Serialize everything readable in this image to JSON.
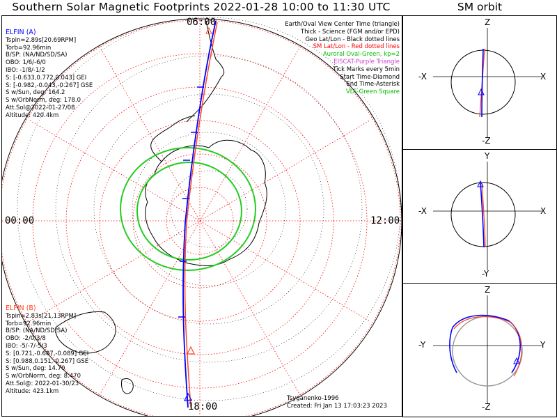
{
  "title": "Southern Solar Magnetic Footprints 2022-01-28 10:00 to 11:30 UTC",
  "sm_title": "SM orbit",
  "elfin_a": {
    "name": "ELFIN (A)",
    "lines": [
      "Tspin=2.89s[20.69RPM]",
      "Torb=92.96min",
      "B/SP: (NA/ND/SD/SA)",
      "OBO: 1/6/-6/0",
      "IBO: -1/8/-1/2",
      "S: [-0.633,0.772,0.043] GEI",
      "S: [-0.982,-0.043,-0.267] GSE",
      "S w/Sun, deg: 164.2",
      "S w/OrbNorm, deg: 178.0",
      "Att.Sol@2022-01-27/08",
      "Altitude: 420.4km"
    ]
  },
  "elfin_b": {
    "name": "ELFIN (B)",
    "lines": [
      "Tspin=2.83s[21.13RPM]",
      "Torb=92.96min",
      "B/SP: (NA/ND/SD/SA)",
      "OBO: -2/0/3/8",
      "IBO: -5/-7/-5/3",
      "S: [0.721,-0.687,-0.089] GEI",
      "S: [0.988,0.151,-0.267] GSE",
      "S w/Sun, deg: 14.70",
      "S w/OrbNorm, deg: 8.470",
      "Att.Sol@: 2022-01-30/23",
      "Altitude: 423.1km"
    ]
  },
  "legend": [
    {
      "text": "Earth/Oval View Center Time (triangle)",
      "color": "#000000"
    },
    {
      "text": "Thick - Science (FGM and/or EPD)",
      "color": "#000000"
    },
    {
      "text": "Geo Lat/Lon - Black dotted lines",
      "color": "#000000"
    },
    {
      "text": "SM Lat/Lon - Red dotted lines",
      "color": "#ff0000"
    },
    {
      "text": "Auroral Oval-Green, kp=2",
      "color": "#00bb00"
    },
    {
      "text": "EISCAT-Purple Triangle",
      "color": "#cc44cc"
    },
    {
      "text": "Tick Marks every 5min",
      "color": "#000000"
    },
    {
      "text": "Start Time-Diamond",
      "color": "#000000"
    },
    {
      "text": "End Time-Asterisk",
      "color": "#000000"
    },
    {
      "text": "VLF-Green Square",
      "color": "#00bb00"
    }
  ],
  "mlt": {
    "top": "06:00",
    "left": "00:00",
    "right": "12:00",
    "bottom": "18:00"
  },
  "credits": {
    "model": "Tsyganenko-1996",
    "created": "Created: Fri Jan 13 17:03:23 2023"
  },
  "sm_panels": [
    {
      "top": "Z",
      "bottom": "-Z",
      "left": "-X",
      "right": "X"
    },
    {
      "top": "Y",
      "bottom": "-Y",
      "left": "-X",
      "right": "X"
    },
    {
      "top": "Z",
      "bottom": "-Z",
      "left": "-Y",
      "right": "Y"
    }
  ],
  "colors": {
    "elfin_a": "#0000ff",
    "elfin_b": "#ff4422",
    "oval": "#22cc22",
    "grid_sm": "#ff0000",
    "coast": "#000000"
  }
}
